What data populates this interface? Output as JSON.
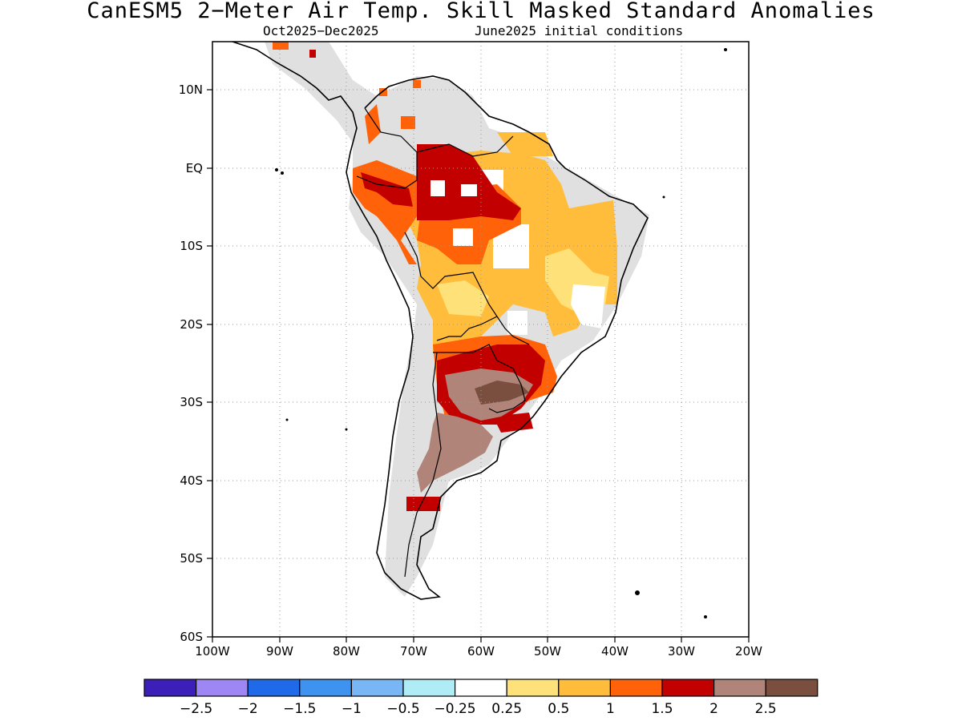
{
  "title": "CanESM5 2−Meter Air Temp. Skill Masked Standard Anomalies",
  "subtitle_left": "Oct2025−Dec2025",
  "subtitle_right": "June2025 initial conditions",
  "lat_labels": [
    "10N",
    "EQ",
    "10S",
    "20S",
    "30S",
    "40S",
    "50S",
    "60S"
  ],
  "lon_labels": [
    "100W",
    "90W",
    "80W",
    "70W",
    "60W",
    "50W",
    "40W",
    "30W",
    "20W"
  ],
  "colorbar": {
    "colors": [
      "#3b1fb8",
      "#9e86f5",
      "#1f6ae8",
      "#3f93f0",
      "#78b6f6",
      "#b0ecf6",
      "#ffffff",
      "#ffe17a",
      "#ffbd3b",
      "#ff6208",
      "#c30000",
      "#b08478",
      "#7a4f40"
    ],
    "labels": [
      "−2.5",
      "−2",
      "−1.5",
      "−1",
      "−0.5",
      "−0.25",
      "0.25",
      "0.5",
      "1",
      "1.5",
      "2",
      "2.5"
    ]
  },
  "colors": {
    "land_mask": "#e0e0e0",
    "coast": "#000000",
    "grid": "#9a9a9a"
  }
}
